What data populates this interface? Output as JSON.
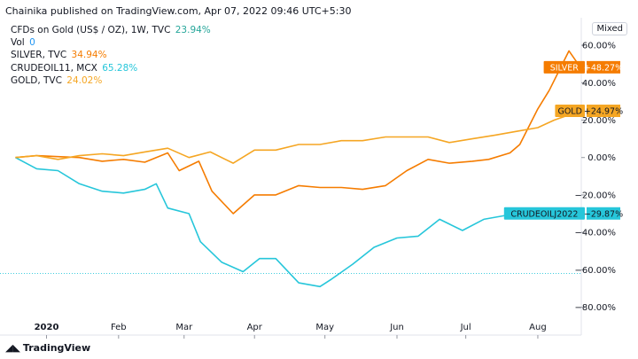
{
  "header": "Chainika published on TradingView.com, Apr 07, 2022 09:46 UTC+5:30",
  "footer_logo": "TradingView",
  "scale_button": "Mixed",
  "legend": [
    {
      "label": "CFDs on Gold (US$ / OZ), 1W, TVC",
      "value": "23.94%",
      "color": "#26a69a"
    },
    {
      "label": "Vol",
      "value": "0",
      "color": "#2196f3"
    },
    {
      "label": "SILVER, TVC",
      "value": "34.94%",
      "color": "#f57c00"
    },
    {
      "label": "CRUDEOIL11, MCX",
      "value": "65.28%",
      "color": "#26c6da"
    },
    {
      "label": "GOLD, TVC",
      "value": "24.02%",
      "color": "#f5a623"
    }
  ],
  "chart_data": {
    "type": "line",
    "x_tick_labels": [
      "2020",
      "Feb",
      "Mar",
      "Apr",
      "May",
      "Jun",
      "Jul",
      "Aug"
    ],
    "y_tick_labels": [
      "60.00%",
      "40.00%",
      "20.00%",
      "0.00%",
      "−20.00%",
      "−40.00%",
      "−60.00%",
      "−80.00%"
    ],
    "y_ticks": [
      60,
      40,
      20,
      0,
      -20,
      -40,
      -60,
      -80
    ],
    "ylim": [
      -84,
      70
    ],
    "x_range_weeks": [
      -2.3,
      32.6
    ],
    "x_tick_weeks": [
      0,
      4.4,
      8.4,
      12.7,
      17,
      21.4,
      25.6,
      30
    ],
    "reference_line": -62,
    "series": [
      {
        "name": "SILVER",
        "color": "#f57c00",
        "label": "SILVER",
        "label_value": "+48.27%",
        "label_at": 48.27,
        "x": [
          -1.9,
          -0.6,
          0.7,
          2.0,
          3.4,
          4.7,
          6.0,
          7.4,
          8.1,
          9.3,
          10.1,
          11.4,
          12.7,
          14.0,
          15.4,
          16.7,
          18.0,
          19.3,
          20.7,
          22.0,
          23.3,
          24.6,
          26.0,
          27.0,
          28.3,
          28.9,
          30.0,
          30.7
        ],
        "y": [
          0,
          1,
          0.5,
          0,
          -2,
          -1,
          -2.5,
          2.5,
          -7,
          -2,
          -18,
          -30,
          -20,
          -20,
          -15,
          -16,
          -16,
          -17,
          -15,
          -7,
          -1,
          -3,
          -2,
          -1,
          2.5,
          7,
          26,
          36
        ]
      },
      {
        "name": "SILVER",
        "color": "#f57c00",
        "x": [
          30.7,
          31.9,
          32.6
        ],
        "y": [
          36,
          57,
          48.27
        ]
      },
      {
        "name": "CRUDEOIL11",
        "color": "#26c6da",
        "label": "CRUDEOIL",
        "label_value": "−29.87%",
        "label_at": -29.87,
        "x": [
          -1.9,
          -0.6,
          0.7,
          2.0,
          3.4,
          4.7,
          6.0,
          6.7,
          7.4,
          8.7,
          9.4,
          10.7,
          12.0,
          13.0,
          14.0,
          15.4,
          16.7,
          17.4,
          18.7,
          20.0,
          21.4,
          22.7,
          24.0,
          25.4,
          26.7,
          28.0,
          29.3,
          30.7,
          32.0
        ],
        "y": [
          0,
          -6,
          -7,
          -14,
          -18,
          -19,
          -17,
          -14,
          -27,
          -30,
          -45,
          -56,
          -61,
          -54,
          -54,
          -67,
          -69,
          -65,
          -57,
          -48,
          -43,
          -42,
          -33,
          -39,
          -33,
          -31,
          -31,
          -30,
          -29.87
        ]
      },
      {
        "name": "GOLD",
        "color": "#f5a623",
        "label": "GOLD",
        "label_value": "+24.97%",
        "label_at": 24.97,
        "x": [
          -1.9,
          -0.6,
          0.7,
          2.0,
          3.4,
          4.7,
          6.0,
          7.4,
          8.7,
          10.0,
          11.4,
          12.7,
          14.0,
          15.4,
          16.7,
          18.0,
          19.3,
          20.7,
          22.0,
          23.3,
          24.6,
          26.0,
          27.4,
          28.7,
          30.0,
          31.0,
          32.6
        ],
        "y": [
          0,
          1,
          -1,
          1,
          2,
          1,
          3,
          5,
          0,
          3,
          -3,
          4,
          4,
          7,
          7,
          9,
          9,
          11,
          11,
          11,
          8,
          10,
          12,
          14,
          16,
          20,
          25
        ]
      }
    ],
    "labels": [
      {
        "text": "SILVER",
        "value": "+48.27%",
        "y": 48.27,
        "bg": "#f57c00",
        "fg": "#ffffff"
      },
      {
        "text": "GOLD",
        "value": "+24.97%",
        "y": 24.97,
        "bg": "#f5a623",
        "fg": "#131722"
      },
      {
        "text": "CRUDEOILJ2022",
        "value": "−29.87%",
        "y": -29.87,
        "bg": "#26c6da",
        "fg": "#131722"
      }
    ]
  }
}
